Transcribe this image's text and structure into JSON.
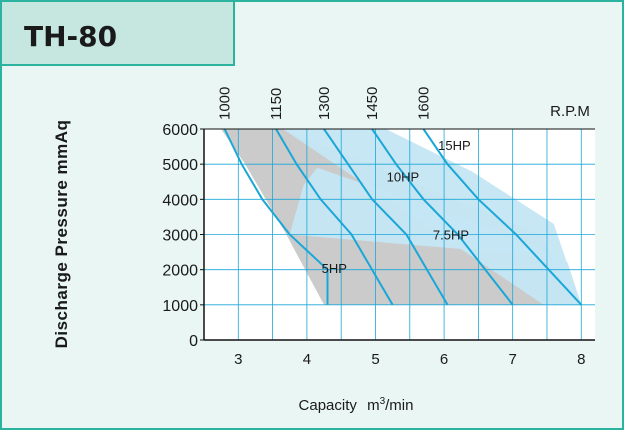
{
  "header": {
    "model": "TH-80"
  },
  "chart_data": {
    "type": "line",
    "title": "TH-80",
    "xlabel": "Capacity",
    "xlabel_unit_base": "m",
    "xlabel_unit_sup": "3",
    "xlabel_unit_tail": "/min",
    "ylabel": "Discharge Pressure mmAq",
    "top_axis_label": "R.P.M",
    "xlim": [
      2.5,
      8.2
    ],
    "ylim": [
      0,
      6000
    ],
    "x_ticks": [
      3,
      4,
      5,
      6,
      7,
      8
    ],
    "y_ticks": [
      0,
      1000,
      2000,
      3000,
      4000,
      5000,
      6000
    ],
    "grid": true,
    "rpm_series": [
      {
        "name": "1000",
        "points": [
          [
            2.8,
            6000
          ],
          [
            3.05,
            5000
          ],
          [
            3.35,
            4000
          ],
          [
            3.75,
            3000
          ],
          [
            4.3,
            2000
          ],
          [
            4.3,
            1000
          ]
        ]
      },
      {
        "name": "1150",
        "points": [
          [
            3.55,
            6000
          ],
          [
            3.85,
            5000
          ],
          [
            4.2,
            4000
          ],
          [
            4.65,
            3000
          ],
          [
            5.25,
            1000
          ]
        ]
      },
      {
        "name": "1300",
        "points": [
          [
            4.25,
            6000
          ],
          [
            4.6,
            5000
          ],
          [
            4.95,
            4000
          ],
          [
            5.45,
            3000
          ],
          [
            6.05,
            1000
          ]
        ]
      },
      {
        "name": "1450",
        "points": [
          [
            4.95,
            6000
          ],
          [
            5.3,
            5000
          ],
          [
            5.7,
            4000
          ],
          [
            6.2,
            3000
          ],
          [
            7.0,
            1000
          ]
        ]
      },
      {
        "name": "1600",
        "points": [
          [
            5.7,
            6000
          ],
          [
            6.05,
            5000
          ],
          [
            6.5,
            4000
          ],
          [
            7.05,
            3000
          ],
          [
            8.0,
            1000
          ]
        ]
      }
    ],
    "power_labels": [
      "15HP",
      "10HP",
      "7.5HP",
      "5HP"
    ],
    "power_bands": [
      {
        "color": "#c8c8c8",
        "points": [
          [
            2.75,
            6000
          ],
          [
            3.65,
            6000
          ],
          [
            7.4,
            3000
          ],
          [
            8.0,
            1000
          ],
          [
            4.25,
            1000
          ],
          [
            3.7,
            3000
          ],
          [
            3.1,
            5000
          ]
        ]
      },
      {
        "color": "#c5e6f3",
        "points": [
          [
            3.65,
            6000
          ],
          [
            5.15,
            6000
          ],
          [
            6.4,
            4800
          ],
          [
            7.6,
            3300
          ],
          [
            8.0,
            1000
          ],
          [
            7.45,
            1000
          ]
        ]
      },
      {
        "color": "#c5e6f3",
        "points": [
          [
            3.75,
            3000
          ],
          [
            3.95,
            4400
          ],
          [
            4.15,
            4900
          ],
          [
            6.5,
            3300
          ],
          [
            7.8,
            2200
          ],
          [
            8.0,
            1000
          ],
          [
            7.4,
            2400
          ]
        ]
      }
    ],
    "colors": {
      "curve": "#1aa7d8",
      "band_gray": "#c8c8c8",
      "band_blue": "#c5e6f3",
      "frame": "#2bb3a0"
    }
  }
}
